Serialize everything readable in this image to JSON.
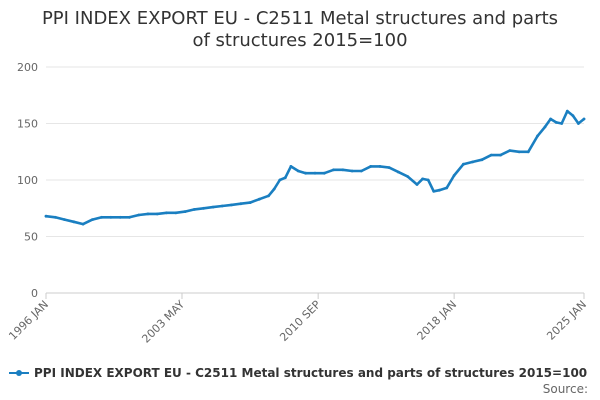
{
  "chart_data": {
    "type": "line",
    "title": "PPI INDEX EXPORT EU - C2511 Metal structures and parts of structures 2015=100",
    "xlabel": "",
    "ylabel": "",
    "ylim": [
      0,
      200
    ],
    "yticks": [
      0,
      50,
      100,
      150,
      200
    ],
    "xtick_labels": [
      "1996 JAN",
      "2003 MAY",
      "2010 SEP",
      "2018 JAN",
      "2025 JAN"
    ],
    "grid": true,
    "legend_position": "bottom-left",
    "series": [
      {
        "name": "PPI INDEX EXPORT EU - C2511 Metal structures and parts of structures 2015=100",
        "color": "#1a7fc1",
        "x": [
          1996.0,
          1996.5,
          1997.0,
          1997.5,
          1998.0,
          1998.5,
          1999.0,
          1999.5,
          2000.0,
          2000.5,
          2001.0,
          2001.5,
          2002.0,
          2002.5,
          2003.0,
          2003.5,
          2004.0,
          2004.5,
          2005.0,
          2005.5,
          2006.0,
          2006.5,
          2007.0,
          2007.5,
          2008.0,
          2008.3,
          2008.6,
          2008.9,
          2009.2,
          2009.6,
          2010.0,
          2010.5,
          2011.0,
          2011.5,
          2012.0,
          2012.5,
          2013.0,
          2013.5,
          2014.0,
          2014.5,
          2015.0,
          2015.5,
          2016.0,
          2016.3,
          2016.6,
          2016.9,
          2017.2,
          2017.6,
          2018.0,
          2018.5,
          2019.0,
          2019.5,
          2020.0,
          2020.5,
          2021.0,
          2021.5,
          2022.0,
          2022.5,
          2022.9,
          2023.2,
          2023.5,
          2023.8,
          2024.1,
          2024.4,
          2024.7,
          2025.0
        ],
        "values": [
          68,
          67,
          65,
          63,
          61,
          65,
          67,
          67,
          67,
          67,
          69,
          70,
          70,
          71,
          71,
          72,
          74,
          75,
          76,
          77,
          78,
          79,
          80,
          83,
          86,
          92,
          100,
          102,
          112,
          108,
          106,
          106,
          106,
          109,
          109,
          108,
          108,
          112,
          112,
          111,
          107,
          103,
          96,
          101,
          100,
          90,
          91,
          93,
          104,
          114,
          116,
          118,
          122,
          122,
          126,
          125,
          125,
          139,
          147,
          154,
          151,
          150,
          161,
          157,
          150,
          154
        ]
      }
    ]
  },
  "legend": {
    "label": "PPI INDEX EXPORT EU - C2511 Metal structures and parts of structures 2015=100"
  },
  "source": {
    "label": "Source:"
  }
}
